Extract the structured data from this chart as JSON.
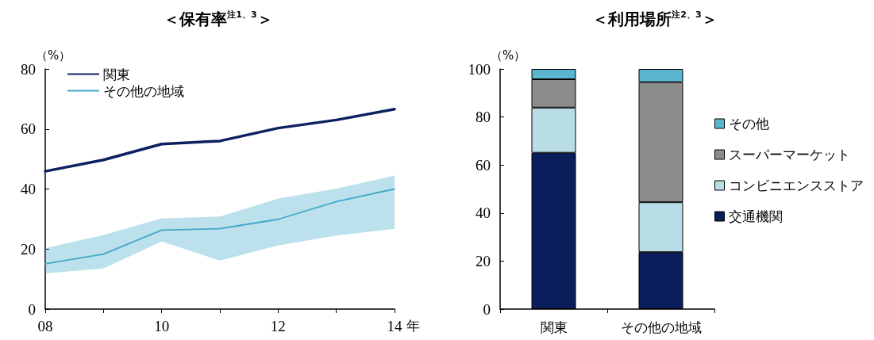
{
  "chart_data": [
    {
      "type": "line",
      "title": "＜保有率$^{注1、3}$＞",
      "xlabel": "年",
      "ylabel": "（%）",
      "x": [
        2008,
        2009,
        2010,
        2011,
        2012,
        2013,
        2014
      ],
      "xlim": [
        2008,
        2014
      ],
      "xticks": [
        {
          "value": 2008,
          "label": "08"
        },
        {
          "value": 2009,
          "label": null
        },
        {
          "value": 2010,
          "label": "10"
        },
        {
          "value": 2011,
          "label": null
        },
        {
          "value": 2012,
          "label": "12"
        },
        {
          "value": 2013,
          "label": null
        },
        {
          "value": 2014,
          "label": "14"
        }
      ],
      "ylim": [
        0,
        80
      ],
      "yticks": [
        0,
        20,
        40,
        60,
        80
      ],
      "grid": false,
      "marker": "none",
      "legend": "top left",
      "series": [
        {
          "name": "関東",
          "color": "#0d2060",
          "values": [
            45.9,
            49.7,
            55.0,
            56.0,
            60.3,
            63.0,
            66.6
          ]
        },
        {
          "name": "その他の地域",
          "color": "#41a9c9",
          "values": [
            15.1,
            18.3,
            26.3,
            26.8,
            29.9,
            35.8,
            40.0
          ],
          "lower": [
            11.9,
            13.5,
            22.5,
            16.2,
            21.2,
            24.5,
            26.7
          ],
          "upper": [
            20.3,
            24.7,
            30.2,
            30.8,
            36.8,
            40.1,
            44.5
          ]
        }
      ]
    },
    {
      "type": "bar",
      "title": "＜利用場所$^{注2、3}$＞",
      "ylabel": "（%）",
      "categories": [
        "関東",
        "その他の地域"
      ],
      "stacked": true,
      "ylim": [
        0,
        100
      ],
      "yticks": [
        0,
        20,
        40,
        60,
        80,
        100
      ],
      "grid": false,
      "legend": "right",
      "series": [
        {
          "name": "交通機関",
          "color": "#0a1e5c",
          "values": [
            65.1,
            23.7
          ]
        },
        {
          "name": "コンビニエンスストア",
          "color": "#b8dde6",
          "values": [
            18.8,
            20.8
          ]
        },
        {
          "name": "スーパーマーケット",
          "color": "#8c8c8c",
          "values": [
            11.8,
            50.0
          ]
        },
        {
          "name": "その他",
          "color": "#5bb5cf",
          "values": [
            4.3,
            5.5
          ]
        }
      ]
    }
  ]
}
